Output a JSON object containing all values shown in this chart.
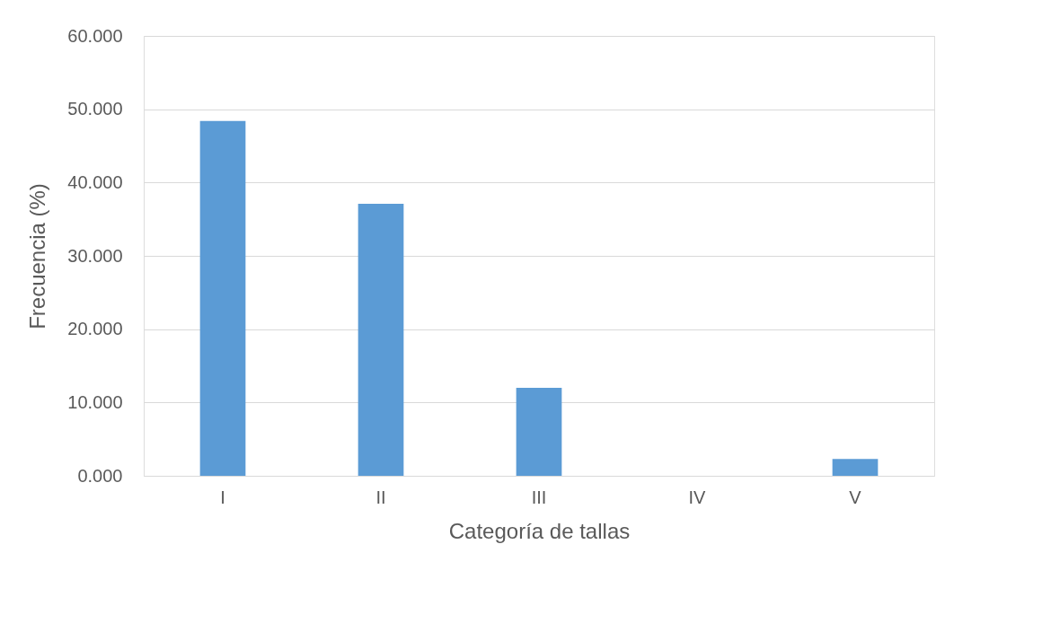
{
  "chart_data": {
    "type": "bar",
    "xlabel": "Categoría de tallas",
    "ylabel": "Frecuencia (%)",
    "categories": [
      "I",
      "II",
      "III",
      "IV",
      "V"
    ],
    "values": [
      48.4,
      37.1,
      12.0,
      0,
      2.3
    ],
    "color": "#5b9bd5",
    "ylim": [
      0,
      60
    ],
    "yticks": [
      {
        "value": 0,
        "label": "0.000"
      },
      {
        "value": 10,
        "label": "10.000"
      },
      {
        "value": 20,
        "label": "20.000"
      },
      {
        "value": 30,
        "label": "30.000"
      },
      {
        "value": 40,
        "label": "40.000"
      },
      {
        "value": 50,
        "label": "50.000"
      },
      {
        "value": 60,
        "label": "60.000"
      }
    ],
    "grid": "y"
  }
}
